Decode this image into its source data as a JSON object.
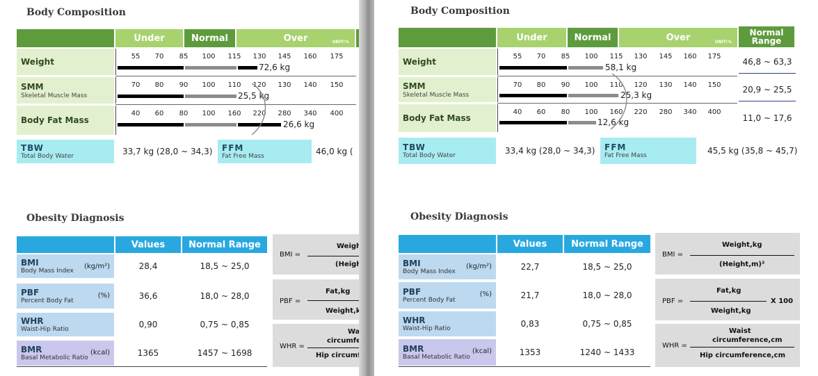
{
  "left": {
    "body_title": "Body Composition",
    "headers": {
      "under": "Under",
      "normal": "Normal",
      "over": "Over",
      "unit": "UNIT:%"
    },
    "rows": [
      {
        "label": "Weight",
        "sub": "",
        "ticks": [
          "55",
          "70",
          "85",
          "100",
          "115",
          "130",
          "145",
          "160",
          "175"
        ],
        "value": "72,6 kg"
      },
      {
        "label": "SMM",
        "sub": "Skeletal Muscle Mass",
        "ticks": [
          "70",
          "80",
          "90",
          "100",
          "110",
          "120",
          "130",
          "140",
          "150"
        ],
        "value": "25,5 kg"
      },
      {
        "label": "Body Fat Mass",
        "sub": "",
        "ticks": [
          "40",
          "60",
          "80",
          "100",
          "160",
          "220",
          "280",
          "340",
          "400"
        ],
        "value": "26,6 kg"
      }
    ],
    "tbw": {
      "label": "TBW",
      "sub": "Total Body Water",
      "value": "33,7 kg (28,0 ~ 34,3)"
    },
    "ffm": {
      "label": "FFM",
      "sub": "Fat Free Mass",
      "value": "46,0 kg ("
    },
    "obesity_title": "Obesity Diagnosis",
    "ob_headers": {
      "values": "Values",
      "normal": "Normal Range"
    },
    "ob_rows": [
      {
        "label": "BMI",
        "sub": "Body Mass Index",
        "unit": "(kg/m²)",
        "value": "28,4",
        "range": "18,5 ~ 25,0"
      },
      {
        "label": "PBF",
        "sub": "Percent Body Fat",
        "unit": "(%)",
        "value": "36,6",
        "range": "18,0 ~ 28,0"
      },
      {
        "label": "WHR",
        "sub": "Waist-Hip Ratio",
        "unit": "",
        "value": "0,90",
        "range": "0,75 ~ 0,85"
      },
      {
        "label": "BMR",
        "sub": "Basal Metabolic Ratio",
        "unit": "(kcal)",
        "value": "1365",
        "range": "1457 ~ 1698"
      }
    ],
    "formulas": [
      {
        "lhs": "BMI =",
        "num": "Weigh",
        "den": "(Heigh"
      },
      {
        "lhs": "PBF =",
        "num": "Fat,kg",
        "den": "Weight,k"
      },
      {
        "lhs": "WHR =",
        "num": "Wai",
        "num2": "circumfe",
        "den": "Hip circumf"
      }
    ]
  },
  "right": {
    "body_title": "Body Composition",
    "headers": {
      "under": "Under",
      "normal": "Normal",
      "over": "Over",
      "unit": "UNIT:%",
      "normal_range": "Normal Range"
    },
    "rows": [
      {
        "label": "Weight",
        "sub": "",
        "ticks": [
          "55",
          "70",
          "85",
          "100",
          "115",
          "130",
          "145",
          "160",
          "175"
        ],
        "value": "58,1 kg",
        "range": "46,8 ~ 63,3"
      },
      {
        "label": "SMM",
        "sub": "Skeletal Muscle Mass",
        "ticks": [
          "70",
          "80",
          "90",
          "100",
          "110",
          "120",
          "130",
          "140",
          "150"
        ],
        "value": "25,3 kg",
        "range": "20,9 ~ 25,5"
      },
      {
        "label": "Body Fat Mass",
        "sub": "",
        "ticks": [
          "40",
          "60",
          "80",
          "100",
          "160",
          "220",
          "280",
          "340",
          "400"
        ],
        "value": "12,6 kg",
        "range": "11,0 ~ 17,6"
      }
    ],
    "tbw": {
      "label": "TBW",
      "sub": "Total Body Water",
      "value": "33,4 kg (28,0 ~ 34,3)"
    },
    "ffm": {
      "label": "FFM",
      "sub": "Fat Free Mass",
      "value": "45,5 kg (35,8 ~ 45,7)"
    },
    "obesity_title": "Obesity Diagnosis",
    "ob_headers": {
      "values": "Values",
      "normal": "Normal Range"
    },
    "ob_rows": [
      {
        "label": "BMI",
        "sub": "Body Mass Index",
        "unit": "(kg/m²)",
        "value": "22,7",
        "range": "18,5 ~ 25,0"
      },
      {
        "label": "PBF",
        "sub": "Percent Body Fat",
        "unit": "(%)",
        "value": "21,7",
        "range": "18,0 ~ 28,0"
      },
      {
        "label": "WHR",
        "sub": "Waist-Hip Ratio",
        "unit": "",
        "value": "0,83",
        "range": "0,75 ~ 0,85"
      },
      {
        "label": "BMR",
        "sub": "Basal Metabolic Ratio",
        "unit": "(kcal)",
        "value": "1353",
        "range": "1240 ~ 1433"
      }
    ],
    "formulas": [
      {
        "lhs": "BMI =",
        "num": "Weight,kg",
        "den": "(Height,m)²"
      },
      {
        "lhs": "PBF =",
        "num": "Fat,kg",
        "den": "Weight,kg",
        "suffix": "X 100"
      },
      {
        "lhs": "WHR =",
        "num": "Waist",
        "num2": "circumference,cm",
        "den": "Hip circumference,cm"
      }
    ]
  }
}
